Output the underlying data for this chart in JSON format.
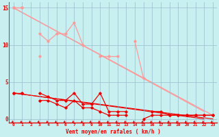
{
  "x": [
    0,
    1,
    2,
    3,
    4,
    5,
    6,
    7,
    8,
    9,
    10,
    11,
    12,
    13,
    14,
    15,
    16,
    17,
    18,
    19,
    20,
    21,
    22,
    23
  ],
  "line_pink1": [
    15,
    15,
    null,
    11.5,
    10.5,
    11.5,
    11.5,
    13,
    10,
    null,
    8.5,
    8.5,
    8.5,
    null,
    10.5,
    5.5,
    null,
    null,
    null,
    null,
    null,
    null,
    null,
    null
  ],
  "line_pink2": [
    15,
    15,
    null,
    8.5,
    null,
    null,
    null,
    null,
    null,
    null,
    null,
    null,
    null,
    null,
    null,
    null,
    null,
    null,
    null,
    null,
    null,
    null,
    null,
    null
  ],
  "line_pink_tri1": [
    null,
    null,
    null,
    8.5,
    10,
    10.5,
    11,
    null,
    8.5,
    null,
    null,
    null,
    null,
    null,
    null,
    null,
    null,
    null,
    null,
    null,
    null,
    null,
    null,
    null
  ],
  "line_pink_diag1": [
    15,
    null,
    null,
    null,
    null,
    null,
    null,
    null,
    null,
    null,
    null,
    null,
    null,
    null,
    null,
    null,
    null,
    null,
    null,
    null,
    null,
    null,
    1,
    null
  ],
  "line_pink_diag2": [
    15,
    null,
    null,
    null,
    null,
    null,
    null,
    null,
    null,
    null,
    null,
    null,
    null,
    null,
    null,
    null,
    null,
    null,
    null,
    null,
    null,
    null,
    null,
    0.5
  ],
  "line_red1": [
    3.5,
    3.5,
    null,
    3.5,
    3,
    2.5,
    2.5,
    3.5,
    2,
    2,
    3.5,
    1,
    1,
    1,
    null,
    null,
    1,
    1,
    0.5,
    0.5,
    0.5,
    0.5,
    0.5,
    0.5
  ],
  "line_red2": [
    3.5,
    3.5,
    null,
    2.5,
    2.5,
    2,
    1.5,
    2.5,
    1.5,
    1.5,
    1,
    0.5,
    0.5,
    0.5,
    null,
    0,
    0.5,
    0.5,
    0.5,
    0.5,
    0.5,
    0.5,
    0.5,
    0.5
  ],
  "line_red_diag1": [
    3.5,
    null,
    null,
    null,
    null,
    null,
    null,
    null,
    null,
    null,
    null,
    null,
    null,
    null,
    null,
    null,
    null,
    null,
    null,
    null,
    null,
    null,
    0,
    null
  ],
  "line_red_diag2": [
    3.5,
    null,
    null,
    null,
    null,
    null,
    null,
    null,
    null,
    null,
    null,
    null,
    null,
    null,
    null,
    null,
    null,
    null,
    null,
    null,
    null,
    null,
    null,
    0
  ],
  "x_ticks": [
    0,
    1,
    2,
    3,
    4,
    5,
    6,
    7,
    8,
    9,
    10,
    11,
    12,
    13,
    14,
    15,
    16,
    17,
    18,
    19,
    20,
    21,
    22,
    23
  ],
  "y_ticks": [
    0,
    5,
    10,
    15
  ],
  "xlabel": "Vent moyen/en rafales ( km/h )",
  "bg_color": "#c8f0f0",
  "grid_color": "#99bbcc",
  "light_pink": "#ff9999",
  "dark_red": "#ee0000",
  "arrow_color": "#cc0000"
}
